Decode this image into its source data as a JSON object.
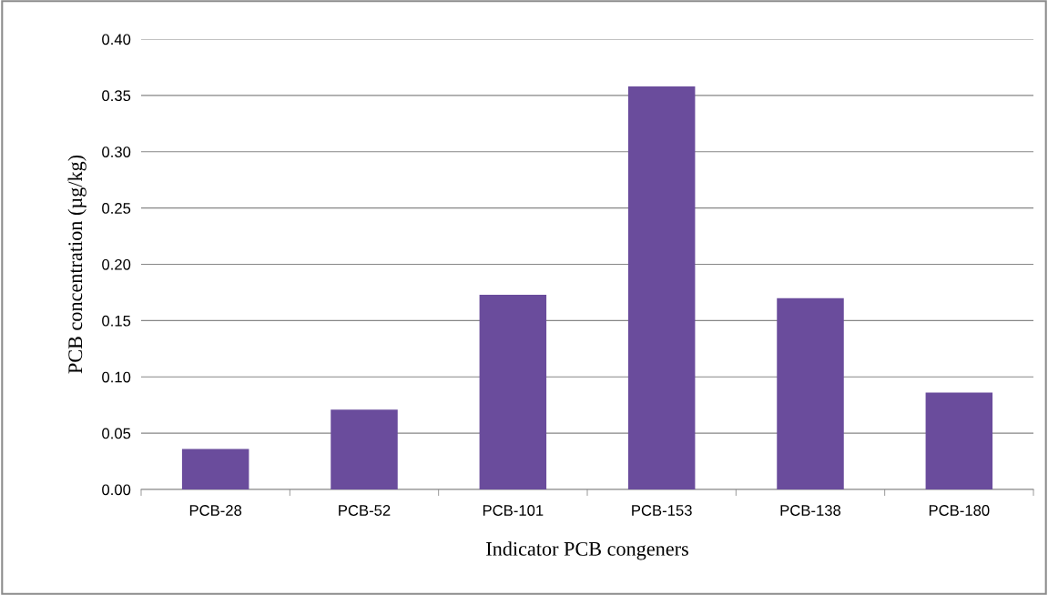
{
  "chart_data": {
    "type": "bar",
    "xlabel": "Indicator PCB congeners",
    "ylabel": "PCB concentration (µg/kg)",
    "categories": [
      "PCB-28",
      "PCB-52",
      "PCB-101",
      "PCB-153",
      "PCB-138",
      "PCB-180"
    ],
    "values": [
      0.036,
      0.071,
      0.173,
      0.358,
      0.17,
      0.086
    ],
    "color": "#6a4c9c",
    "ylim": [
      0,
      0.4
    ],
    "yticks": [
      {
        "value": 0,
        "label": "0.00"
      },
      {
        "value": 0.05,
        "label": "0.05"
      },
      {
        "value": 0.1,
        "label": "0.10"
      },
      {
        "value": 0.15,
        "label": "0.15"
      },
      {
        "value": 0.2,
        "label": "0.20"
      },
      {
        "value": 0.25,
        "label": "0.25"
      },
      {
        "value": 0.3,
        "label": "0.30"
      },
      {
        "value": 0.35,
        "label": "0.35"
      },
      {
        "value": 0.4,
        "label": "0.40"
      }
    ],
    "grid": "y"
  }
}
